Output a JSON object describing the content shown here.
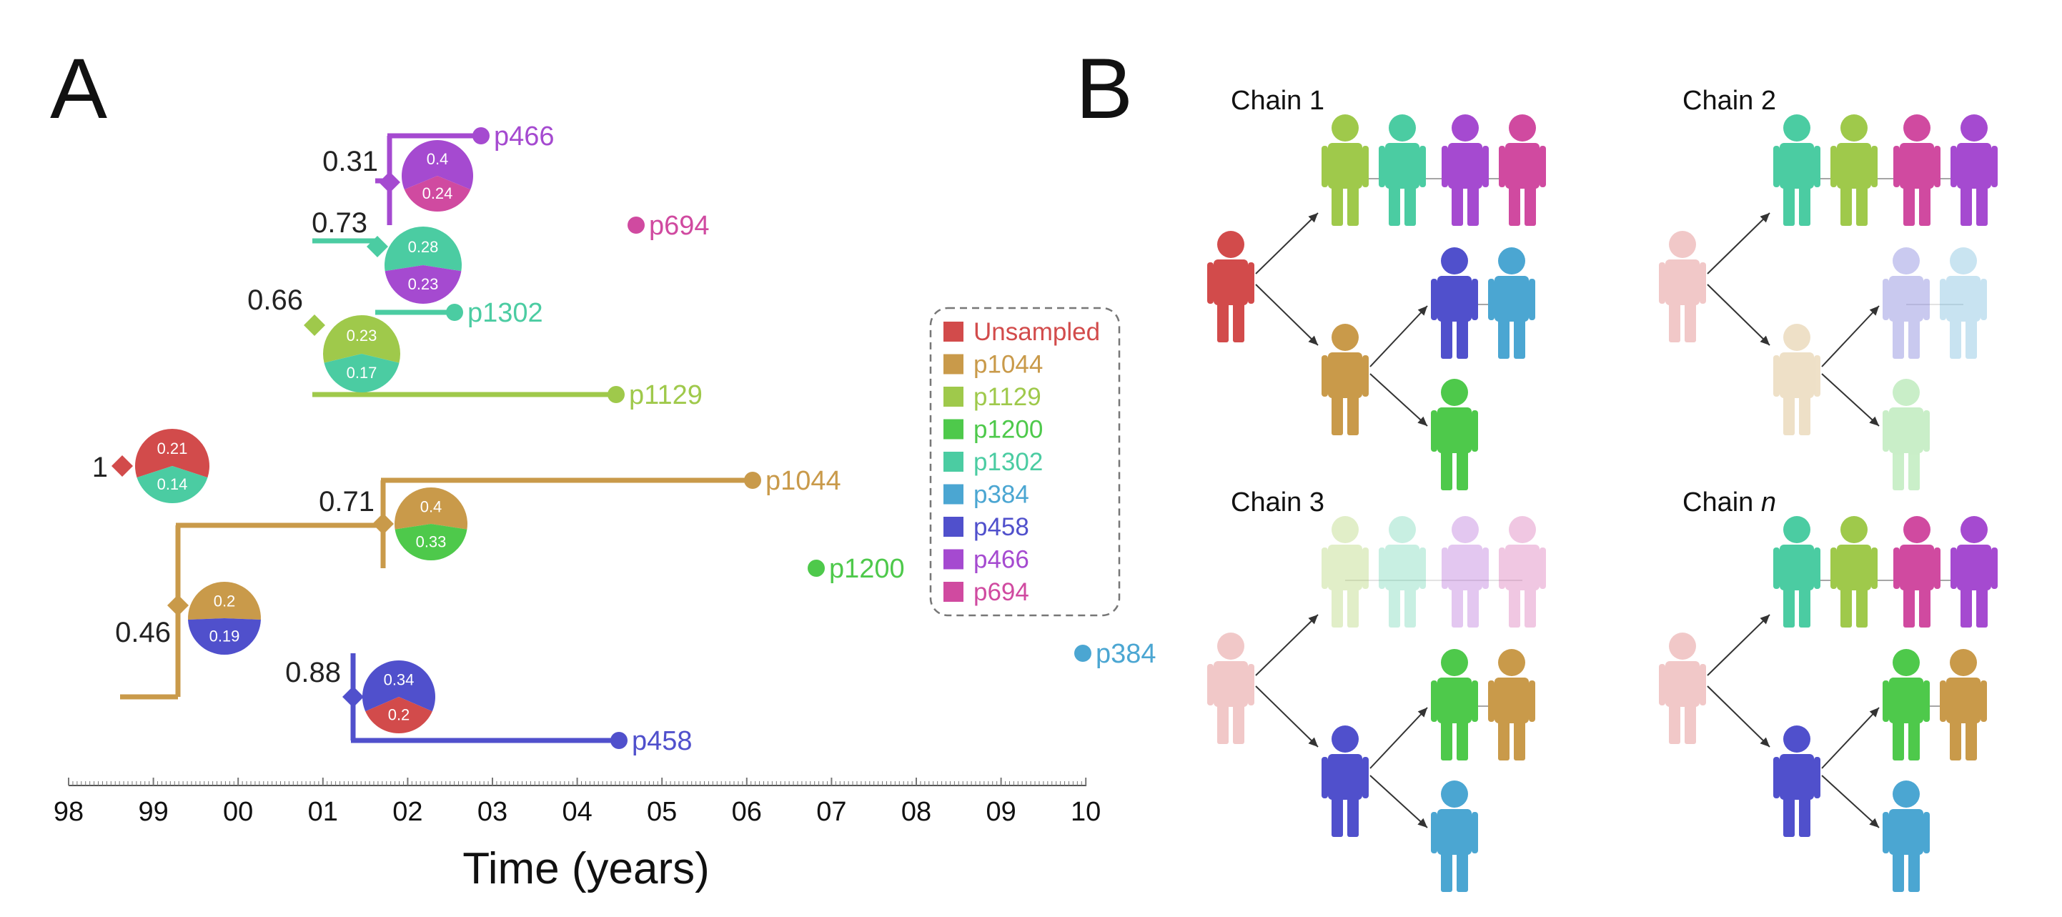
{
  "panels": {
    "a": "A",
    "b": "B"
  },
  "colors": {
    "Unsampled": "#d24b4b",
    "p1044": "#c99a4a",
    "p1129": "#9fc94b",
    "p1200": "#4ec94b",
    "p1302": "#4bcca2",
    "p384": "#4ba6d2",
    "p458": "#5050cc",
    "p466": "#a54ad0",
    "p694": "#d04aa0"
  },
  "tree": {
    "tips": [
      {
        "id": "p466",
        "label": "p466"
      },
      {
        "id": "p694",
        "label": "p694"
      },
      {
        "id": "p1302",
        "label": "p1302"
      },
      {
        "id": "p1129",
        "label": "p1129"
      },
      {
        "id": "p1044",
        "label": "p1044"
      },
      {
        "id": "p1200",
        "label": "p1200"
      },
      {
        "id": "p384",
        "label": "p384"
      },
      {
        "id": "p458",
        "label": "p458"
      }
    ],
    "nodes": [
      {
        "id": "root",
        "support": "1",
        "pie": [
          {
            "host": "Unsampled",
            "value": 0.21
          },
          {
            "host": "p1302",
            "value": 0.14
          }
        ]
      },
      {
        "id": "n066",
        "support": "0.66",
        "pie": [
          {
            "host": "p1129",
            "value": 0.23
          },
          {
            "host": "p1302",
            "value": 0.17
          }
        ]
      },
      {
        "id": "n073",
        "support": "0.73",
        "pie": [
          {
            "host": "p1302",
            "value": 0.28
          },
          {
            "host": "p466",
            "value": 0.23
          }
        ]
      },
      {
        "id": "n031",
        "support": "0.31",
        "pie": [
          {
            "host": "p466",
            "value": 0.4
          },
          {
            "host": "p694",
            "value": 0.24
          }
        ]
      },
      {
        "id": "n046",
        "support": "0.46",
        "pie": [
          {
            "host": "p1044",
            "value": 0.2
          },
          {
            "host": "p458",
            "value": 0.19
          }
        ]
      },
      {
        "id": "n071",
        "support": "0.71",
        "pie": [
          {
            "host": "p1044",
            "value": 0.4
          },
          {
            "host": "p1200",
            "value": 0.33
          }
        ]
      },
      {
        "id": "n088",
        "support": "0.88",
        "pie": [
          {
            "host": "p458",
            "value": 0.34
          },
          {
            "host": "Unsampled",
            "value": 0.2
          }
        ]
      }
    ]
  },
  "axis": {
    "ticks": [
      "98",
      "99",
      "00",
      "01",
      "02",
      "03",
      "04",
      "05",
      "06",
      "07",
      "08",
      "09",
      "10"
    ],
    "title": "Time (years)"
  },
  "legend": {
    "items": [
      "Unsampled",
      "p1044",
      "p1129",
      "p1200",
      "p1302",
      "p384",
      "p458",
      "p466",
      "p694"
    ]
  },
  "chains": [
    {
      "title": "Chain 1",
      "title_suffix": ""
    },
    {
      "title": "Chain 2",
      "title_suffix": ""
    },
    {
      "title": "Chain 3",
      "title_suffix": ""
    },
    {
      "title": "Chain ",
      "title_suffix": "n"
    }
  ]
}
